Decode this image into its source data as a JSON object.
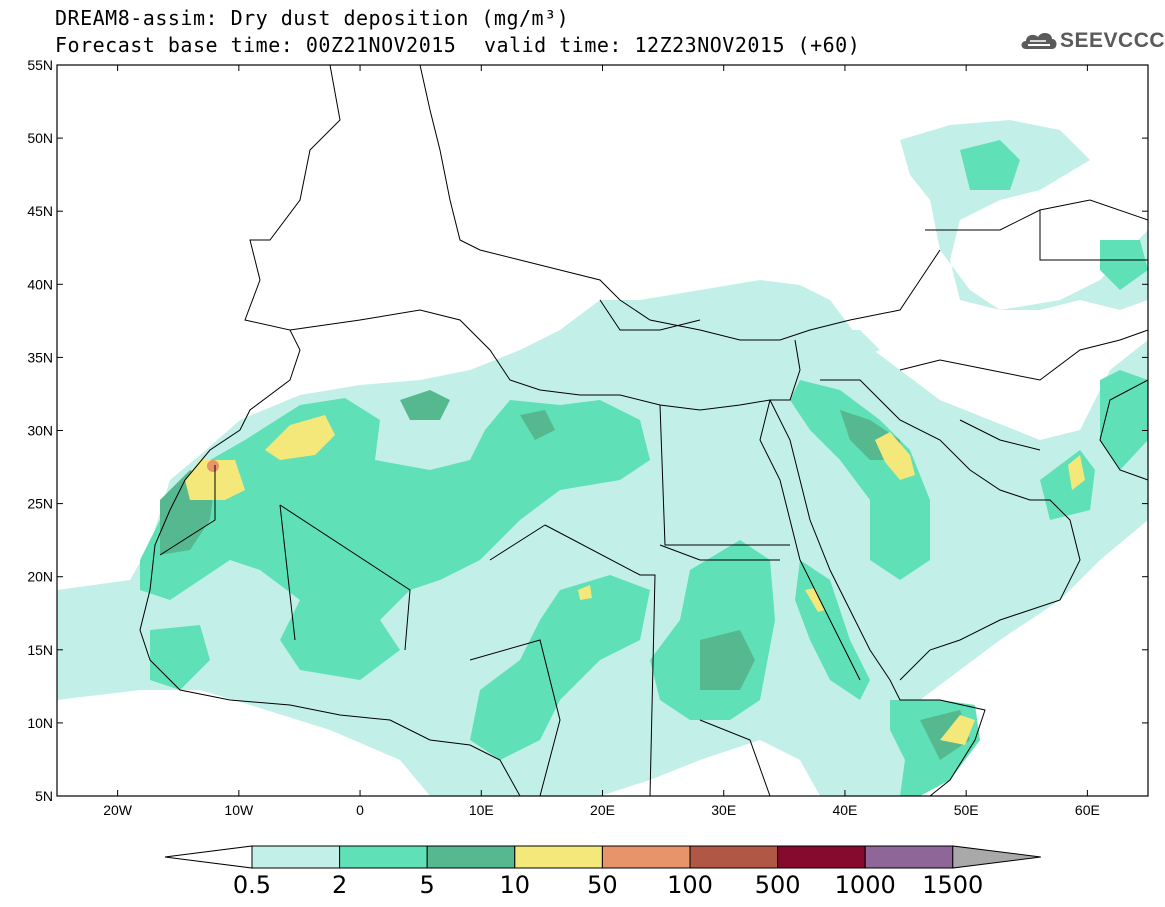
{
  "header": {
    "title_line1": "DREAM8-assim: Dry dust deposition (mg/m³)",
    "title_line2_base": "Forecast base time: 00Z21NOV2015",
    "title_line2_valid": "valid time: 12Z23NOV2015 (+60)",
    "logo_text": "SEEVCCC",
    "logo_icon": "cloud-icon"
  },
  "axes": {
    "lat_labels": [
      "55N",
      "50N",
      "45N",
      "40N",
      "35N",
      "30N",
      "25N",
      "20N",
      "15N",
      "10N",
      "5N"
    ],
    "lon_labels": [
      "20W",
      "10W",
      "0",
      "10E",
      "20E",
      "30E",
      "40E",
      "50E",
      "60E"
    ],
    "lat_range": [
      5,
      55
    ],
    "lon_range": [
      -25,
      65
    ]
  },
  "colorbar": {
    "labels": [
      "0.5",
      "2",
      "5",
      "10",
      "50",
      "100",
      "500",
      "1000",
      "1500"
    ],
    "colors": [
      "#c2f0e9",
      "#5fe0b6",
      "#56b88f",
      "#f5e87a",
      "#e8946a",
      "#b05845",
      "#850a2d",
      "#8e6798",
      "#a9a9a9"
    ],
    "under_color": "#ffffff",
    "over_color": "#a9a9a9"
  },
  "field_colors": {
    "level1": "#c2f0e9",
    "level2": "#5fe0b6",
    "level3": "#56b88f",
    "level4": "#f5e87a",
    "level5": "#e8946a"
  }
}
